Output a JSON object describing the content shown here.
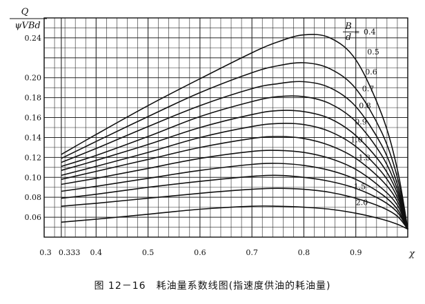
{
  "caption": "图 12－16　耗油量系数线图(指速度供油的耗油量)",
  "chart_data": {
    "type": "line",
    "title": "",
    "ylabel_numerator": "Q",
    "ylabel_denominator": "ψVBd",
    "xlabel": "χ",
    "xlim": [
      0.3,
      1.0
    ],
    "ylim": [
      0.04,
      0.26
    ],
    "xticks": [
      {
        "value": 0.3,
        "label": "0.3"
      },
      {
        "value": 0.333,
        "label": "0.333"
      },
      {
        "value": 0.4,
        "label": "0.4"
      },
      {
        "value": 0.5,
        "label": "0.5"
      },
      {
        "value": 0.6,
        "label": "0.6"
      },
      {
        "value": 0.7,
        "label": "0.7"
      },
      {
        "value": 0.8,
        "label": "0.8"
      },
      {
        "value": 0.9,
        "label": "0.9"
      }
    ],
    "yticks": [
      {
        "value": 0.06,
        "label": "0.06"
      },
      {
        "value": 0.08,
        "label": "0.08"
      },
      {
        "value": 0.1,
        "label": "0.10"
      },
      {
        "value": 0.12,
        "label": "0.12"
      },
      {
        "value": 0.14,
        "label": "0.14"
      },
      {
        "value": 0.16,
        "label": "0.16"
      },
      {
        "value": 0.18,
        "label": "0.18"
      },
      {
        "value": 0.2,
        "label": "0.20"
      },
      {
        "value": 0.24,
        "label": "0.24"
      }
    ],
    "curve_label_prefix_num": "B",
    "curve_label_prefix_den": "d",
    "curve_label_prefix_eq": "=",
    "series": [
      {
        "label": "0.4",
        "x": [
          0.333,
          0.4,
          0.5,
          0.6,
          0.7,
          0.75,
          0.8,
          0.85,
          0.9,
          0.95,
          0.98,
          1.0
        ],
        "y": [
          0.123,
          0.143,
          0.172,
          0.199,
          0.225,
          0.236,
          0.243,
          0.24,
          0.218,
          0.163,
          0.108,
          0.048
        ]
      },
      {
        "label": "0.5",
        "x": [
          0.333,
          0.4,
          0.5,
          0.6,
          0.7,
          0.75,
          0.8,
          0.85,
          0.9,
          0.95,
          0.98,
          1.0
        ],
        "y": [
          0.119,
          0.136,
          0.161,
          0.185,
          0.205,
          0.212,
          0.215,
          0.209,
          0.189,
          0.145,
          0.1,
          0.048
        ]
      },
      {
        "label": "0.6",
        "x": [
          0.333,
          0.4,
          0.5,
          0.6,
          0.7,
          0.75,
          0.8,
          0.85,
          0.9,
          0.95,
          0.98,
          1.0
        ],
        "y": [
          0.115,
          0.129,
          0.151,
          0.172,
          0.189,
          0.194,
          0.196,
          0.19,
          0.171,
          0.132,
          0.093,
          0.048
        ]
      },
      {
        "label": "0.7",
        "x": [
          0.333,
          0.4,
          0.5,
          0.6,
          0.7,
          0.75,
          0.8,
          0.85,
          0.9,
          0.95,
          0.98,
          1.0
        ],
        "y": [
          0.111,
          0.122,
          0.141,
          0.161,
          0.176,
          0.181,
          0.181,
          0.174,
          0.156,
          0.122,
          0.088,
          0.048
        ]
      },
      {
        "label": "0.8",
        "x": [
          0.333,
          0.4,
          0.5,
          0.6,
          0.7,
          0.75,
          0.8,
          0.85,
          0.9,
          0.95,
          0.98,
          1.0
        ],
        "y": [
          0.107,
          0.117,
          0.133,
          0.15,
          0.163,
          0.167,
          0.166,
          0.159,
          0.142,
          0.113,
          0.084,
          0.048
        ]
      },
      {
        "label": "0.9",
        "x": [
          0.333,
          0.4,
          0.5,
          0.6,
          0.7,
          0.75,
          0.8,
          0.85,
          0.9,
          0.95,
          0.98,
          1.0
        ],
        "y": [
          0.102,
          0.111,
          0.125,
          0.14,
          0.151,
          0.154,
          0.153,
          0.146,
          0.131,
          0.105,
          0.08,
          0.048
        ]
      },
      {
        "label": "1.0",
        "x": [
          0.333,
          0.4,
          0.5,
          0.6,
          0.7,
          0.75,
          0.8,
          0.85,
          0.9,
          0.95,
          0.98,
          1.0
        ],
        "y": [
          0.098,
          0.106,
          0.118,
          0.13,
          0.139,
          0.141,
          0.139,
          0.132,
          0.119,
          0.097,
          0.076,
          0.048
        ]
      },
      {
        "label": "",
        "x": [
          0.333,
          0.4,
          0.5,
          0.6,
          0.7,
          0.75,
          0.8,
          0.85,
          0.9,
          0.95,
          0.98,
          1.0
        ],
        "y": [
          0.093,
          0.099,
          0.109,
          0.119,
          0.126,
          0.127,
          0.125,
          0.119,
          0.108,
          0.089,
          0.072,
          0.048
        ]
      },
      {
        "label": "1.3",
        "x": [
          0.333,
          0.4,
          0.5,
          0.6,
          0.7,
          0.75,
          0.8,
          0.85,
          0.9,
          0.95,
          0.98,
          1.0
        ],
        "y": [
          0.086,
          0.091,
          0.099,
          0.107,
          0.113,
          0.114,
          0.112,
          0.107,
          0.098,
          0.083,
          0.068,
          0.048
        ]
      },
      {
        "label": "",
        "x": [
          0.333,
          0.4,
          0.5,
          0.6,
          0.7,
          0.75,
          0.8,
          0.85,
          0.9,
          0.95,
          0.98,
          1.0
        ],
        "y": [
          0.079,
          0.083,
          0.09,
          0.096,
          0.101,
          0.102,
          0.1,
          0.096,
          0.089,
          0.077,
          0.065,
          0.048
        ]
      },
      {
        "label": "1.5",
        "x": [
          0.333,
          0.4,
          0.5,
          0.6,
          0.7,
          0.75,
          0.8,
          0.85,
          0.9,
          0.95,
          0.98,
          1.0
        ],
        "y": [
          0.071,
          0.074,
          0.079,
          0.084,
          0.088,
          0.089,
          0.088,
          0.085,
          0.079,
          0.07,
          0.061,
          0.048
        ]
      },
      {
        "label": "2.0",
        "x": [
          0.333,
          0.4,
          0.5,
          0.6,
          0.7,
          0.75,
          0.8,
          0.85,
          0.9,
          0.95,
          0.98,
          1.0
        ],
        "y": [
          0.055,
          0.058,
          0.063,
          0.068,
          0.071,
          0.071,
          0.07,
          0.068,
          0.064,
          0.058,
          0.053,
          0.048
        ]
      }
    ]
  }
}
